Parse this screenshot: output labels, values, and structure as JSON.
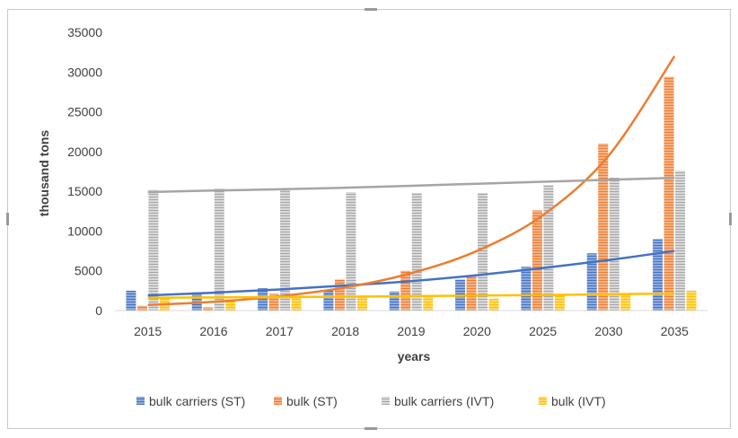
{
  "chart_data": {
    "type": "bar",
    "title": "",
    "xlabel": "years",
    "ylabel": "thousand tons",
    "ylim": [
      0,
      35000
    ],
    "yticks": [
      0,
      5000,
      10000,
      15000,
      20000,
      25000,
      30000,
      35000
    ],
    "grid": false,
    "legend_position": "bottom",
    "categories": [
      "2015",
      "2016",
      "2017",
      "2018",
      "2019",
      "2020",
      "2025",
      "2030",
      "2035"
    ],
    "series": [
      {
        "name": "bulk carriers (ST)",
        "color": "#4472c4",
        "values": [
          2500,
          2300,
          2800,
          2500,
          2400,
          3900,
          5500,
          7200,
          9000
        ],
        "trend": [
          1900,
          2250,
          2650,
          3150,
          3700,
          4450,
          5350,
          6350,
          7500
        ]
      },
      {
        "name": "bulk (ST)",
        "color": "#ed7d31",
        "values": [
          600,
          400,
          2100,
          3900,
          5000,
          4400,
          12600,
          21000,
          29400
        ],
        "trend": [
          700,
          1100,
          1800,
          2900,
          4700,
          7500,
          12000,
          19500,
          32000
        ]
      },
      {
        "name": "bulk carriers (IVT)",
        "color": "#a5a5a5",
        "values": [
          15200,
          15300,
          15300,
          14900,
          14800,
          14800,
          15800,
          16700,
          17600
        ],
        "trend": [
          14900,
          15100,
          15250,
          15450,
          15700,
          15950,
          16200,
          16450,
          16700
        ]
      },
      {
        "name": "bulk (IVT)",
        "color": "#ffc000",
        "values": [
          1500,
          1400,
          1700,
          1800,
          1800,
          1500,
          2100,
          2200,
          2500
        ],
        "trend": [
          1600,
          1650,
          1700,
          1750,
          1800,
          1900,
          1950,
          2050,
          2150
        ]
      }
    ]
  }
}
